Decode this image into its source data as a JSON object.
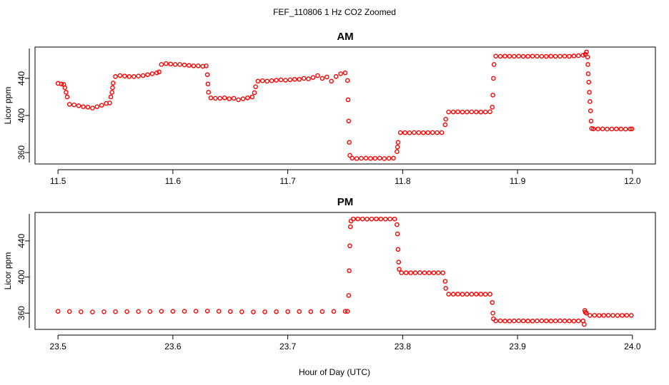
{
  "title": "FEF_110806  1 Hz CO2 Zoomed",
  "x_label": "Hour of Day (UTC)",
  "chart_data": [
    {
      "type": "scatter",
      "title": "AM",
      "y_label": "Licor ppm",
      "color": "#ff0000",
      "xlim": [
        11.48,
        12.02
      ],
      "ylim": [
        347.7,
        473.8
      ],
      "xticks": [
        11.5,
        11.6,
        11.7,
        11.8,
        11.9,
        {
          "value": 12,
          "label": "12.0"
        }
      ],
      "yticks": [
        360,
        400,
        440
      ],
      "x": [
        11.5,
        11.503,
        11.505,
        11.506,
        11.507,
        11.508,
        11.51,
        11.514,
        11.518,
        11.522,
        11.526,
        11.53,
        11.534,
        11.538,
        11.542,
        11.545,
        11.546,
        11.547,
        11.5475,
        11.548,
        11.55,
        11.554,
        11.558,
        11.562,
        11.566,
        11.57,
        11.574,
        11.578,
        11.582,
        11.586,
        11.588,
        11.59,
        11.594,
        11.598,
        11.602,
        11.606,
        11.61,
        11.614,
        11.618,
        11.622,
        11.626,
        11.629,
        11.63,
        11.6305,
        11.631,
        11.633,
        11.637,
        11.641,
        11.645,
        11.649,
        11.653,
        11.657,
        11.661,
        11.665,
        11.669,
        11.671,
        11.672,
        11.674,
        11.678,
        11.682,
        11.686,
        11.69,
        11.694,
        11.698,
        11.702,
        11.706,
        11.71,
        11.714,
        11.718,
        11.722,
        11.726,
        11.73,
        11.734,
        11.738,
        11.742,
        11.746,
        11.75,
        11.752,
        11.7525,
        11.753,
        11.7535,
        11.754,
        11.756,
        11.76,
        11.764,
        11.768,
        11.772,
        11.776,
        11.78,
        11.784,
        11.788,
        11.792,
        11.795,
        11.7955,
        11.796,
        11.798,
        11.802,
        11.806,
        11.81,
        11.814,
        11.818,
        11.822,
        11.826,
        11.83,
        11.834,
        11.837,
        11.8375,
        11.84,
        11.844,
        11.848,
        11.852,
        11.856,
        11.86,
        11.864,
        11.868,
        11.872,
        11.876,
        11.878,
        11.8785,
        11.879,
        11.8795,
        11.881,
        11.885,
        11.889,
        11.893,
        11.897,
        11.901,
        11.905,
        11.909,
        11.913,
        11.917,
        11.921,
        11.925,
        11.929,
        11.933,
        11.937,
        11.941,
        11.945,
        11.949,
        11.953,
        11.957,
        11.959,
        11.96,
        11.961,
        11.9612,
        11.9615,
        11.962,
        11.9625,
        11.963,
        11.9635,
        11.964,
        11.9645,
        11.966,
        11.97,
        11.974,
        11.978,
        11.982,
        11.986,
        11.99,
        11.994,
        11.998,
        11.9995
      ],
      "values": [
        434.6,
        434,
        433.5,
        430,
        425,
        420,
        412,
        411.5,
        410.5,
        409.5,
        409,
        408,
        409.5,
        411,
        413,
        413.5,
        420,
        425,
        430,
        435,
        442,
        443,
        442.5,
        442,
        442,
        442.5,
        443,
        444,
        445,
        446,
        447,
        455,
        456,
        455.5,
        455,
        455,
        454.5,
        454,
        453.5,
        453.5,
        453,
        453.5,
        444,
        434,
        425,
        419,
        418.5,
        418.5,
        419,
        418,
        418.5,
        417,
        418,
        419,
        420,
        424.6,
        431,
        437,
        437.5,
        437,
        437.5,
        438,
        438.5,
        438,
        438.5,
        439,
        439,
        440,
        439.5,
        441,
        443,
        440,
        441.5,
        437,
        442,
        445,
        446,
        437.7,
        417,
        394,
        371,
        357,
        354,
        353.5,
        353.8,
        354,
        353.6,
        353.8,
        354,
        353.5,
        353.8,
        354,
        361,
        366,
        371,
        381.5,
        381.5,
        381.3,
        381.6,
        381.5,
        381.4,
        381.5,
        381.6,
        381.5,
        381.5,
        390,
        396,
        403.8,
        403.8,
        404,
        403.7,
        403.8,
        403.9,
        403.8,
        403.7,
        403.8,
        404,
        409,
        422,
        440,
        455,
        464,
        463.8,
        464,
        463.9,
        463.8,
        464,
        463.7,
        463.8,
        464,
        463.9,
        463.8,
        463.7,
        464,
        463.8,
        463.9,
        464,
        463.8,
        464.2,
        464.5,
        465,
        466,
        468.5,
        463,
        455,
        445,
        436,
        425,
        415,
        405,
        394,
        386,
        385.5,
        385.4,
        385.5,
        385.3,
        385.4,
        385.5,
        385.4,
        385.3,
        385.4,
        385.5
      ]
    },
    {
      "type": "scatter",
      "title": "PM",
      "y_label": "Licor ppm",
      "color": "#ff0000",
      "xlim": [
        23.48,
        24.02
      ],
      "ylim": [
        342,
        471.5
      ],
      "xticks": [
        23.5,
        23.6,
        23.7,
        23.8,
        23.9,
        {
          "value": 24,
          "label": "24.0"
        }
      ],
      "yticks": [
        360,
        400,
        440
      ],
      "x": [
        23.5,
        23.51,
        23.52,
        23.53,
        23.54,
        23.55,
        23.56,
        23.57,
        23.58,
        23.59,
        23.6,
        23.61,
        23.62,
        23.63,
        23.64,
        23.65,
        23.66,
        23.67,
        23.68,
        23.69,
        23.7,
        23.71,
        23.72,
        23.73,
        23.74,
        23.75,
        23.752,
        23.753,
        23.7535,
        23.754,
        23.7545,
        23.755,
        23.757,
        23.761,
        23.765,
        23.769,
        23.773,
        23.777,
        23.781,
        23.785,
        23.789,
        23.793,
        23.795,
        23.7955,
        23.796,
        23.7965,
        23.797,
        23.799,
        23.803,
        23.807,
        23.811,
        23.815,
        23.819,
        23.823,
        23.827,
        23.831,
        23.835,
        23.837,
        23.8375,
        23.84,
        23.844,
        23.848,
        23.852,
        23.856,
        23.86,
        23.864,
        23.868,
        23.872,
        23.876,
        23.878,
        23.8785,
        23.879,
        23.881,
        23.885,
        23.889,
        23.893,
        23.897,
        23.901,
        23.905,
        23.909,
        23.913,
        23.917,
        23.921,
        23.925,
        23.929,
        23.933,
        23.937,
        23.941,
        23.945,
        23.949,
        23.953,
        23.957,
        23.958,
        23.9585,
        23.959,
        23.96,
        23.963,
        23.967,
        23.971,
        23.975,
        23.979,
        23.983,
        23.987,
        23.991,
        23.995,
        23.999
      ],
      "values": [
        362,
        361.8,
        361.5,
        361.3,
        361.5,
        361.6,
        361.7,
        361.8,
        361.8,
        362,
        362,
        362.1,
        362.2,
        362.3,
        362.1,
        361.8,
        361.5,
        361.3,
        361.4,
        361.6,
        361.7,
        361.8,
        361.7,
        361.8,
        361.9,
        362,
        362,
        379.6,
        407,
        434.5,
        455.7,
        462,
        464.3,
        464.4,
        464.3,
        464.2,
        464.3,
        464.4,
        464.3,
        464.2,
        464.3,
        464.3,
        458,
        447.8,
        430.6,
        416.5,
        408.6,
        404.7,
        404.7,
        404.6,
        404.7,
        404.8,
        404.7,
        404.6,
        404.7,
        404.7,
        404.6,
        395.3,
        387.5,
        381,
        381,
        381.1,
        380.9,
        381,
        381,
        381.1,
        381,
        380.9,
        381,
        371.8,
        360,
        353.7,
        351.4,
        351.5,
        351.3,
        351.2,
        351.4,
        351.5,
        351.4,
        351.3,
        351.2,
        351.4,
        351.5,
        351.4,
        351.3,
        351.4,
        351.5,
        351.4,
        351.3,
        351.2,
        351.4,
        351.4,
        347.5,
        363,
        361,
        360,
        357.5,
        357.6,
        357.4,
        357.5,
        357.6,
        357.5,
        357.4,
        357.5,
        357.6,
        357.5
      ]
    }
  ]
}
